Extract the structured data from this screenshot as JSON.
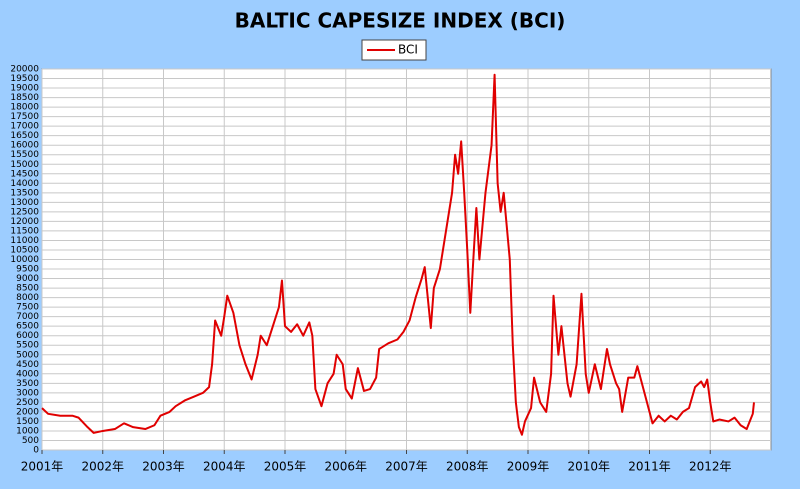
{
  "chart_data": {
    "type": "line",
    "title": "BALTIC CAPESIZE INDEX (BCI)",
    "x": [
      2001.0,
      2001.1,
      2001.3,
      2001.5,
      2001.6,
      2001.75,
      2001.85,
      2002.0,
      2002.2,
      2002.35,
      2002.5,
      2002.7,
      2002.85,
      2002.95,
      2003.1,
      2003.2,
      2003.35,
      2003.5,
      2003.65,
      2003.75,
      2003.8,
      2003.85,
      2003.95,
      2004.0,
      2004.05,
      2004.15,
      2004.25,
      2004.35,
      2004.45,
      2004.55,
      2004.6,
      2004.7,
      2004.8,
      2004.9,
      2004.95,
      2005.0,
      2005.1,
      2005.2,
      2005.3,
      2005.4,
      2005.45,
      2005.5,
      2005.6,
      2005.7,
      2005.8,
      2005.85,
      2005.95,
      2006.0,
      2006.1,
      2006.2,
      2006.3,
      2006.4,
      2006.5,
      2006.55,
      2006.7,
      2006.85,
      2006.95,
      2007.05,
      2007.15,
      2007.25,
      2007.3,
      2007.35,
      2007.4,
      2007.45,
      2007.55,
      2007.65,
      2007.75,
      2007.8,
      2007.85,
      2007.9,
      2007.95,
      2008.0,
      2008.05,
      2008.1,
      2008.15,
      2008.2,
      2008.3,
      2008.4,
      2008.45,
      2008.5,
      2008.55,
      2008.6,
      2008.7,
      2008.75,
      2008.8,
      2008.85,
      2008.9,
      2008.95,
      2009.05,
      2009.1,
      2009.2,
      2009.3,
      2009.38,
      2009.42,
      2009.5,
      2009.55,
      2009.65,
      2009.7,
      2009.8,
      2009.88,
      2009.95,
      2010.0,
      2010.1,
      2010.2,
      2010.3,
      2010.35,
      2010.45,
      2010.5,
      2010.55,
      2010.65,
      2010.75,
      2010.8,
      2010.9,
      2011.0,
      2011.05,
      2011.15,
      2011.25,
      2011.35,
      2011.45,
      2011.55,
      2011.65,
      2011.75,
      2011.85,
      2011.9,
      2011.95,
      2012.0,
      2012.05,
      2012.15,
      2012.3,
      2012.4,
      2012.5,
      2012.55,
      2012.6,
      2012.65,
      2012.7,
      2012.72
    ],
    "series": [
      {
        "name": "BCI",
        "color": "#e00000",
        "values": [
          2200,
          1900,
          1800,
          1800,
          1700,
          1200,
          900,
          1000,
          1100,
          1400,
          1200,
          1100,
          1300,
          1800,
          2000,
          2300,
          2600,
          2800,
          3000,
          3300,
          4500,
          6800,
          6000,
          7000,
          8100,
          7200,
          5500,
          4500,
          3700,
          5000,
          6000,
          5500,
          6500,
          7500,
          8900,
          6500,
          6200,
          6600,
          6000,
          6700,
          6000,
          3200,
          2300,
          3500,
          4000,
          5000,
          4500,
          3200,
          2700,
          4300,
          3100,
          3200,
          3800,
          5300,
          5600,
          5800,
          6200,
          6800,
          8000,
          9000,
          9600,
          8000,
          6400,
          8500,
          9500,
          11500,
          13500,
          15500,
          14500,
          16200,
          13500,
          10500,
          7200,
          10000,
          12700,
          10000,
          13500,
          16000,
          19700,
          14000,
          12500,
          13500,
          10000,
          5500,
          2500,
          1200,
          800,
          1500,
          2200,
          3800,
          2500,
          2000,
          4000,
          8100,
          5000,
          6500,
          3500,
          2800,
          4500,
          8200,
          4000,
          3000,
          4500,
          3200,
          5300,
          4500,
          3500,
          3200,
          2000,
          3800,
          3800,
          4400,
          3200,
          2000,
          1400,
          1800,
          1500,
          1800,
          1600,
          2000,
          2200,
          3300,
          3600,
          3300,
          3700,
          2500,
          1500,
          1600,
          1500,
          1700,
          1300,
          1200,
          1100,
          1500,
          1900,
          2500
        ]
      }
    ],
    "xlim": [
      2001,
      2013
    ],
    "xticks": [
      {
        "value": 2001,
        "label": "2001年"
      },
      {
        "value": 2002,
        "label": "2002年"
      },
      {
        "value": 2003,
        "label": "2003年"
      },
      {
        "value": 2004,
        "label": "2004年"
      },
      {
        "value": 2005,
        "label": "2005年"
      },
      {
        "value": 2006,
        "label": "2006年"
      },
      {
        "value": 2007,
        "label": "2007年"
      },
      {
        "value": 2008,
        "label": "2008年"
      },
      {
        "value": 2009,
        "label": "2009年"
      },
      {
        "value": 2010,
        "label": "2010年"
      },
      {
        "value": 2011,
        "label": "2011年"
      },
      {
        "value": 2012,
        "label": "2012年"
      }
    ],
    "ylim": [
      0,
      20000
    ],
    "yticks": [
      0,
      500,
      1000,
      1500,
      2000,
      2500,
      3000,
      3500,
      4000,
      4500,
      5000,
      5500,
      6000,
      6500,
      7000,
      7500,
      8000,
      8500,
      9000,
      9500,
      10000,
      10500,
      11000,
      11500,
      12000,
      12500,
      13000,
      13500,
      14000,
      14500,
      15000,
      15500,
      16000,
      16500,
      17000,
      17500,
      18000,
      18500,
      19000,
      19500,
      20000
    ],
    "grid": true,
    "legend": "top"
  }
}
